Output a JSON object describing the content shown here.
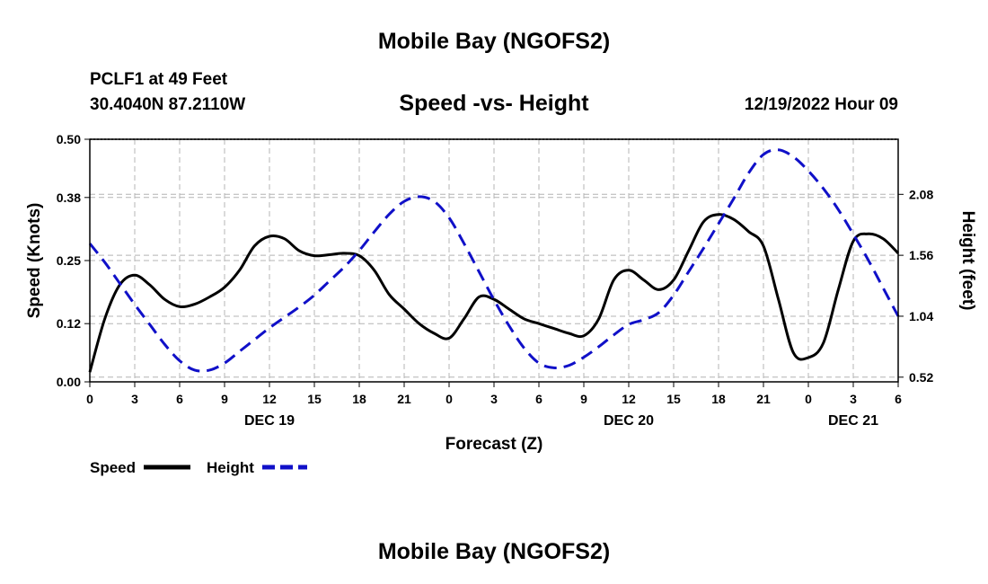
{
  "header": {
    "title": "Mobile Bay (NGOFS2)",
    "station": "PCLF1 at 49 Feet",
    "coords": "30.4040N  87.2110W",
    "chart_title": "Speed -vs- Height",
    "timestamp": "12/19/2022 Hour 09"
  },
  "footer": {
    "title": "Mobile Bay (NGOFS2)"
  },
  "colors": {
    "speed": "#000000",
    "height": "#1010c8",
    "grid": "#b4b4b4"
  },
  "chart_data": {
    "type": "line",
    "xlabel": "Forecast (Z)",
    "ylabel": "Speed (Knots)",
    "y2label": "Height (feet)",
    "x_range_hours": [
      0,
      54
    ],
    "x_ticks": [
      0,
      3,
      6,
      9,
      12,
      15,
      18,
      21,
      24,
      27,
      30,
      33,
      36,
      39,
      42,
      45,
      48,
      51,
      54
    ],
    "x_tick_labels": [
      "0",
      "3",
      "6",
      "9",
      "12",
      "15",
      "18",
      "21",
      "0",
      "3",
      "6",
      "9",
      "12",
      "15",
      "18",
      "21",
      "0",
      "3",
      "6"
    ],
    "day_labels": [
      {
        "hour": 12,
        "label": "DEC 19"
      },
      {
        "hour": 36,
        "label": "DEC 20"
      },
      {
        "hour": 51,
        "label": "DEC 21"
      }
    ],
    "ylim": [
      0,
      0.5
    ],
    "y_ticks": [
      0.0,
      0.12,
      0.25,
      0.38,
      0.5
    ],
    "y_tick_labels": [
      "0.00",
      "0.12",
      "0.25",
      "0.38",
      "0.50"
    ],
    "y2lim": [
      0.48,
      2.55
    ],
    "y2_ticks": [
      0.52,
      1.04,
      1.56,
      2.08
    ],
    "y2_tick_labels": [
      "0.52",
      "1.04",
      "1.56",
      "2.08"
    ],
    "grid": true,
    "legend_position": "bottom-left",
    "series": [
      {
        "name": "Speed",
        "axis": "left",
        "style": "solid",
        "x": [
          0,
          1,
          2,
          3,
          4,
          5,
          6,
          7,
          8,
          9,
          10,
          11,
          12,
          13,
          14,
          15,
          16,
          17,
          18,
          19,
          20,
          21,
          22,
          23,
          24,
          25,
          26,
          27,
          28,
          29,
          30,
          31,
          32,
          33,
          34,
          35,
          36,
          37,
          38,
          39,
          40,
          41,
          42,
          43,
          44,
          45,
          46,
          47,
          48,
          49,
          50,
          51,
          52,
          53,
          54
        ],
        "values": [
          0.02,
          0.13,
          0.2,
          0.22,
          0.2,
          0.17,
          0.155,
          0.16,
          0.175,
          0.195,
          0.23,
          0.28,
          0.3,
          0.295,
          0.27,
          0.26,
          0.262,
          0.265,
          0.26,
          0.23,
          0.18,
          0.15,
          0.12,
          0.1,
          0.09,
          0.13,
          0.175,
          0.17,
          0.15,
          0.13,
          0.12,
          0.11,
          0.1,
          0.095,
          0.13,
          0.21,
          0.23,
          0.21,
          0.19,
          0.21,
          0.27,
          0.33,
          0.345,
          0.335,
          0.31,
          0.28,
          0.17,
          0.06,
          0.05,
          0.08,
          0.19,
          0.29,
          0.305,
          0.295,
          0.265
        ]
      },
      {
        "name": "Height",
        "axis": "right",
        "style": "dashed",
        "x": [
          0,
          1,
          2,
          3,
          4,
          5,
          6,
          7,
          8,
          9,
          10,
          11,
          12,
          13,
          14,
          15,
          16,
          17,
          18,
          19,
          20,
          21,
          22,
          23,
          24,
          25,
          26,
          27,
          28,
          29,
          30,
          31,
          32,
          33,
          34,
          35,
          36,
          37,
          38,
          39,
          40,
          41,
          42,
          43,
          44,
          45,
          46,
          47,
          48,
          49,
          50,
          51,
          52,
          53,
          54
        ],
        "values": [
          1.66,
          1.5,
          1.32,
          1.14,
          0.97,
          0.8,
          0.66,
          0.58,
          0.58,
          0.64,
          0.74,
          0.84,
          0.94,
          1.03,
          1.12,
          1.22,
          1.34,
          1.46,
          1.6,
          1.76,
          1.91,
          2.02,
          2.06,
          2.02,
          1.88,
          1.66,
          1.42,
          1.18,
          0.96,
          0.77,
          0.64,
          0.6,
          0.62,
          0.69,
          0.78,
          0.88,
          0.97,
          1.01,
          1.07,
          1.22,
          1.42,
          1.62,
          1.83,
          2.04,
          2.26,
          2.42,
          2.46,
          2.4,
          2.28,
          2.13,
          1.95,
          1.74,
          1.52,
          1.28,
          1.04
        ]
      }
    ]
  }
}
